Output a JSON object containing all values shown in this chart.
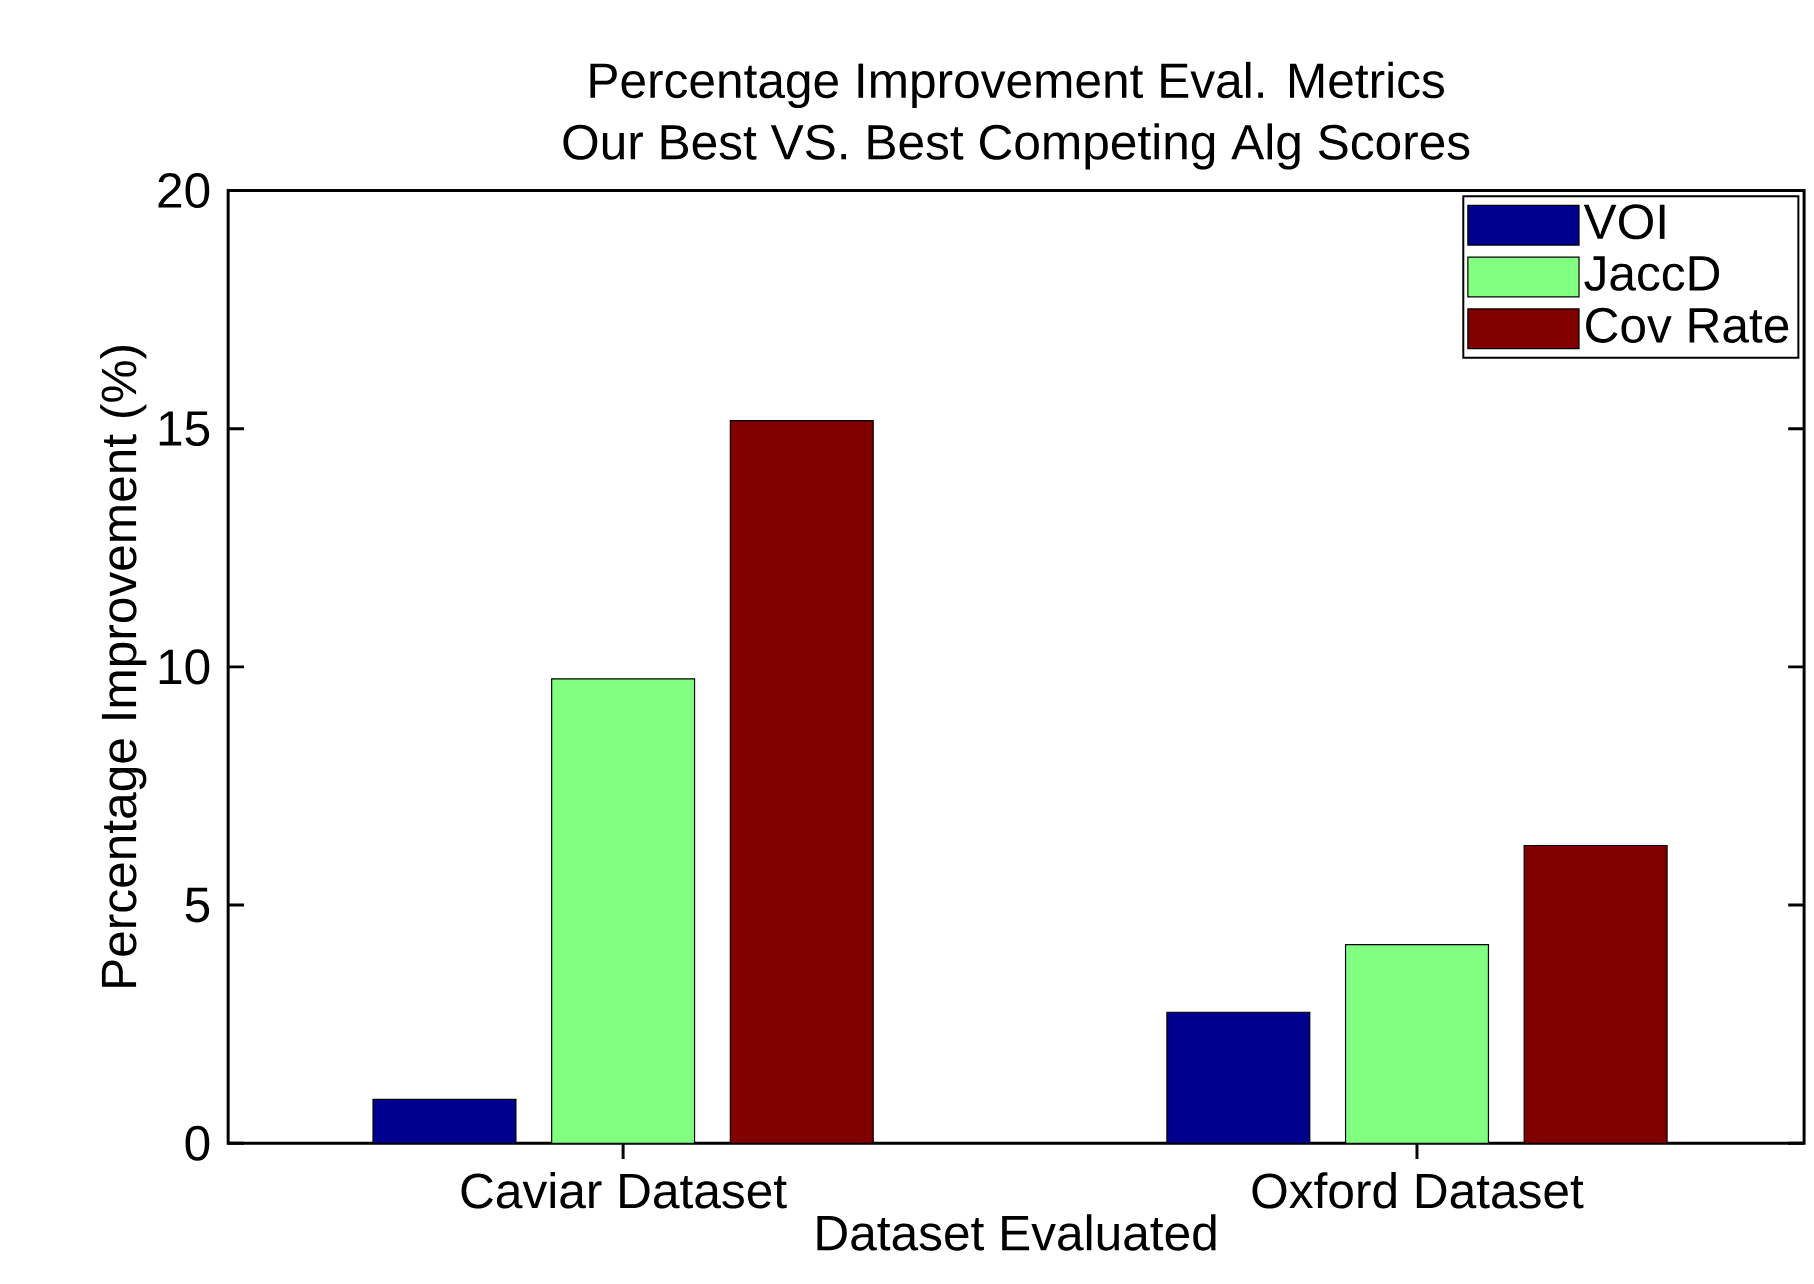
{
  "chart_data": {
    "type": "bar",
    "title": "Percentage Improvement Eval. Metrics",
    "subtitle": "Our Best VS. Best Competing Alg Scores",
    "xlabel": "Dataset Evaluated",
    "ylabel": "Percentage Improvement (%)",
    "categories": [
      "Caviar Dataset",
      "Oxford Dataset"
    ],
    "series": [
      {
        "name": "VOI",
        "color": "#00008f",
        "values": [
          0.92,
          2.75
        ]
      },
      {
        "name": "JaccD",
        "color": "#80ff80",
        "values": [
          9.75,
          4.17
        ]
      },
      {
        "name": "Cov Rate",
        "color": "#800000",
        "values": [
          15.17,
          6.25
        ]
      }
    ],
    "ylim": [
      0,
      20
    ],
    "yticks": [
      0,
      5,
      10,
      15,
      20
    ],
    "grid": false,
    "legend": "top right"
  }
}
